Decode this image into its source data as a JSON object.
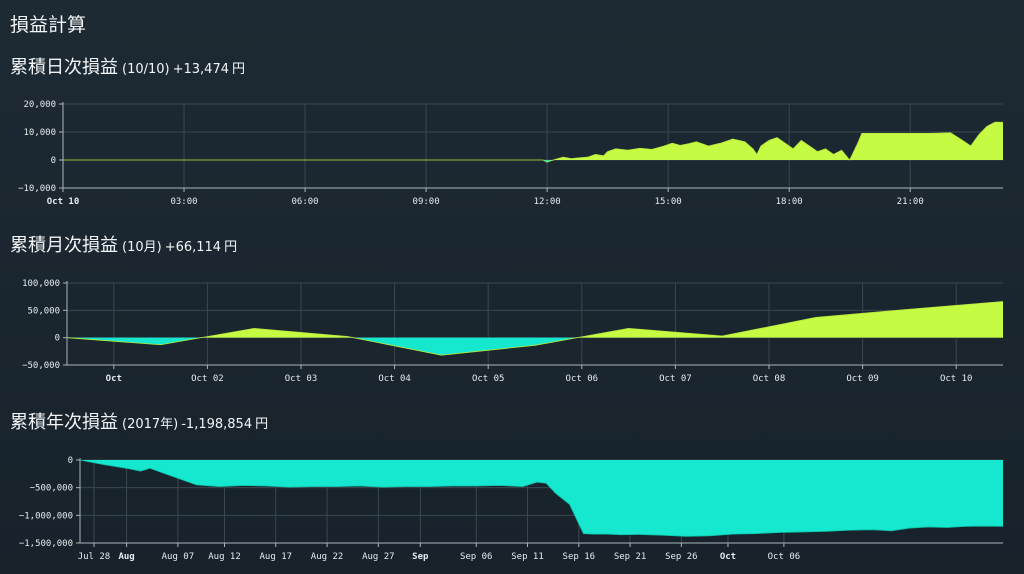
{
  "page_title": "損益計算",
  "colors": {
    "positive": "#c6fb44",
    "negative": "#15e8cf",
    "grid": "#3b4750",
    "axis": "#aab4ba",
    "background": "#1a252e"
  },
  "sections": [
    {
      "title": "累積日次損益",
      "sub": "(10/10)",
      "value": "+13,474",
      "unit": "円"
    },
    {
      "title": "累積月次損益",
      "sub": "(10月)",
      "value": "+66,114",
      "unit": "円"
    },
    {
      "title": "累積年次損益",
      "sub": "(2017年)",
      "value": "-1,198,854",
      "unit": "円"
    }
  ],
  "chart_data": [
    {
      "type": "area",
      "x_unit": "hours since Oct 10 00:00",
      "xlim": [
        0,
        23.3
      ],
      "ylim": [
        -10000,
        20000
      ],
      "yticks": [
        {
          "v": 20000,
          "label": "20,000"
        },
        {
          "v": 10000,
          "label": "10,000"
        },
        {
          "v": 0,
          "label": "0"
        },
        {
          "v": -10000,
          "label": "−10,000"
        }
      ],
      "xticks": [
        {
          "v": 0,
          "label": "Oct 10",
          "bold": true
        },
        {
          "v": 3,
          "label": "03:00"
        },
        {
          "v": 6,
          "label": "06:00"
        },
        {
          "v": 9,
          "label": "09:00"
        },
        {
          "v": 12,
          "label": "12:00"
        },
        {
          "v": 15,
          "label": "15:00"
        },
        {
          "v": 18,
          "label": "18:00"
        },
        {
          "v": 21,
          "label": "21:00"
        }
      ],
      "x": [
        0,
        11.9,
        12.0,
        12.05,
        12.2,
        12.4,
        12.6,
        12.8,
        13.0,
        13.2,
        13.4,
        13.5,
        13.7,
        14.0,
        14.3,
        14.6,
        14.9,
        15.1,
        15.3,
        15.5,
        15.7,
        16.0,
        16.3,
        16.6,
        16.9,
        17.1,
        17.2,
        17.3,
        17.5,
        17.7,
        17.9,
        18.1,
        18.3,
        18.5,
        18.7,
        18.9,
        19.1,
        19.3,
        19.5,
        19.6,
        19.7,
        19.8,
        20.0,
        20.5,
        21.0,
        21.5,
        22.0,
        22.3,
        22.5,
        22.7,
        22.9,
        23.1,
        23.3
      ],
      "y": [
        0,
        0,
        -800,
        -500,
        200,
        1000,
        500,
        800,
        1000,
        2000,
        1500,
        3000,
        4000,
        3500,
        4200,
        3800,
        5000,
        6000,
        5200,
        5800,
        6500,
        5000,
        6000,
        7500,
        6500,
        4000,
        2000,
        5000,
        7000,
        8000,
        6000,
        4000,
        7000,
        5000,
        3000,
        4000,
        2000,
        3500,
        0,
        3000,
        6000,
        9500,
        9500,
        9500,
        9500,
        9500,
        9700,
        7000,
        5000,
        9000,
        12000,
        13500,
        13474
      ]
    },
    {
      "type": "area",
      "xlim": [
        0,
        10
      ],
      "ylim": [
        -50000,
        100000
      ],
      "yticks": [
        {
          "v": 100000,
          "label": "100,000"
        },
        {
          "v": 50000,
          "label": "50,000"
        },
        {
          "v": 0,
          "label": "0"
        },
        {
          "v": -50000,
          "label": "−50,000"
        }
      ],
      "xticks": [
        {
          "v": 0.5,
          "label": "Oct",
          "bold": true
        },
        {
          "v": 1.5,
          "label": "Oct 02"
        },
        {
          "v": 2.5,
          "label": "Oct 03"
        },
        {
          "v": 3.5,
          "label": "Oct 04"
        },
        {
          "v": 4.5,
          "label": "Oct 05"
        },
        {
          "v": 5.5,
          "label": "Oct 06"
        },
        {
          "v": 6.5,
          "label": "Oct 07"
        },
        {
          "v": 7.5,
          "label": "Oct 08"
        },
        {
          "v": 8.5,
          "label": "Oct 09"
        },
        {
          "v": 9.5,
          "label": "Oct 10"
        }
      ],
      "x": [
        0,
        1,
        2,
        3,
        4,
        5,
        6,
        7,
        8,
        9,
        10
      ],
      "y": [
        0,
        -13000,
        17000,
        2000,
        -32000,
        -14000,
        17000,
        3000,
        37000,
        52000,
        66114
      ]
    },
    {
      "type": "area",
      "xlim": [
        0,
        19.8
      ],
      "ylim": [
        -1500000,
        0
      ],
      "yticks": [
        {
          "v": 0,
          "label": "0"
        },
        {
          "v": -500000,
          "label": "−500,000"
        },
        {
          "v": -1000000,
          "label": "−1,000,000"
        },
        {
          "v": -1500000,
          "label": "−1,500,000"
        }
      ],
      "xticks": [
        {
          "v": 0.3,
          "label": "Jul 28"
        },
        {
          "v": 1.0,
          "label": "Aug",
          "bold": true
        },
        {
          "v": 2.1,
          "label": "Aug 07"
        },
        {
          "v": 3.1,
          "label": "Aug 12"
        },
        {
          "v": 4.2,
          "label": "Aug 17"
        },
        {
          "v": 5.3,
          "label": "Aug 22"
        },
        {
          "v": 6.4,
          "label": "Aug 27"
        },
        {
          "v": 7.3,
          "label": "Sep",
          "bold": true
        },
        {
          "v": 8.5,
          "label": "Sep 06"
        },
        {
          "v": 9.6,
          "label": "Sep 11"
        },
        {
          "v": 10.7,
          "label": "Sep 16"
        },
        {
          "v": 11.8,
          "label": "Sep 21"
        },
        {
          "v": 12.9,
          "label": "Sep 26"
        },
        {
          "v": 13.9,
          "label": "Oct",
          "bold": true
        },
        {
          "v": 15.1,
          "label": "Oct 06"
        }
      ],
      "x": [
        0,
        0.3,
        0.5,
        1.0,
        1.3,
        1.5,
        2.0,
        2.5,
        3.0,
        3.5,
        4.0,
        4.5,
        5.0,
        5.5,
        6.0,
        6.5,
        7.0,
        7.5,
        8.0,
        8.5,
        9.0,
        9.5,
        9.8,
        10.0,
        10.2,
        10.5,
        10.8,
        11.0,
        11.3,
        11.6,
        12.0,
        12.5,
        13.0,
        13.5,
        14.0,
        14.5,
        15.0,
        15.5,
        16.0,
        16.5,
        17.0,
        17.4,
        17.8,
        18.2,
        18.6,
        19.0,
        19.4,
        19.8
      ],
      "y": [
        0,
        -50000,
        -80000,
        -150000,
        -200000,
        -150000,
        -300000,
        -450000,
        -480000,
        -460000,
        -470000,
        -490000,
        -480000,
        -480000,
        -470000,
        -490000,
        -480000,
        -480000,
        -470000,
        -470000,
        -460000,
        -480000,
        -400000,
        -420000,
        -600000,
        -800000,
        -1330000,
        -1340000,
        -1340000,
        -1350000,
        -1345000,
        -1360000,
        -1380000,
        -1370000,
        -1340000,
        -1330000,
        -1310000,
        -1300000,
        -1290000,
        -1270000,
        -1260000,
        -1280000,
        -1230000,
        -1210000,
        -1220000,
        -1200000,
        -1195000,
        -1198854
      ]
    }
  ]
}
